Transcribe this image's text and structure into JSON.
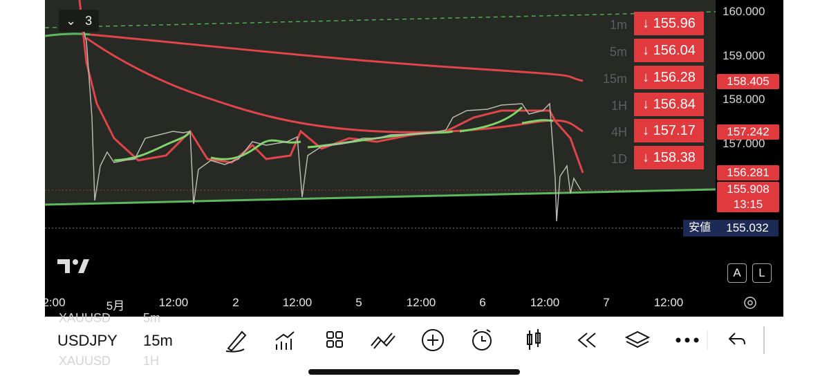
{
  "header": {
    "collapse_count": "3"
  },
  "price_axis": [
    "160.000",
    "159.000",
    "158.000",
    "157.000"
  ],
  "alerts": [
    {
      "interval": "1m",
      "price": "↓ 155.96"
    },
    {
      "interval": "5m",
      "price": "↓ 156.04"
    },
    {
      "interval": "15m",
      "price": "↓ 156.28"
    },
    {
      "interval": "1H",
      "price": "↓ 156.84"
    },
    {
      "interval": "4H",
      "price": "↓ 157.17"
    },
    {
      "interval": "1D",
      "price": "↓ 158.38"
    }
  ],
  "price_tags": {
    "ma_long": "158.405",
    "ma_mid": "157.242",
    "ma_fast": "156.281",
    "last": "155.908",
    "countdown": "13:15",
    "low_label": "安値",
    "low": "155.032"
  },
  "time_axis": [
    "2:00",
    "5月",
    "12:00",
    "2",
    "12:00",
    "5",
    "12:00",
    "6",
    "12:00",
    "7",
    "12:00"
  ],
  "scale_buttons": [
    "A",
    "L"
  ],
  "toolbar": {
    "symbol": "USDJPY",
    "interval": "15m",
    "prev_symbol": "XAUUSD",
    "prev_interval": "5m",
    "next_symbol": "XAUUSD",
    "next_interval": "1H"
  }
}
